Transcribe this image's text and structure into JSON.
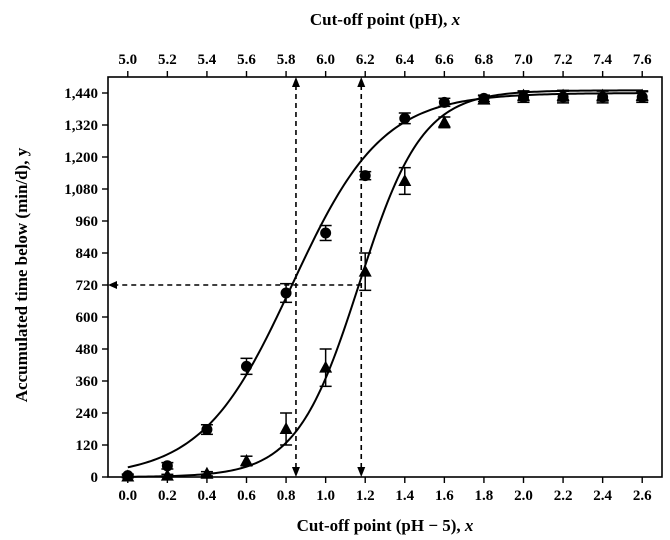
{
  "chart_data": {
    "type": "scatter",
    "title": "",
    "xlabel": "Cut-off point (pH − 5), x",
    "xlabel_text": "Cut-off point (pH − 5), ",
    "xlabel_var": "x",
    "x2label": "Cut-off point (pH), x",
    "x2label_text": "Cut-off point (pH), ",
    "x2label_var": "x",
    "ylabel": "Accumulated time below (min/d), y",
    "xlim": [
      -0.1,
      2.7
    ],
    "ylim": [
      0,
      1500
    ],
    "x_ticks": [
      0.0,
      0.2,
      0.4,
      0.6,
      0.8,
      1.0,
      1.2,
      1.4,
      1.6,
      1.8,
      2.0,
      2.2,
      2.4,
      2.6
    ],
    "x_tick_labels": [
      "0.0",
      "0.2",
      "0.4",
      "0.6",
      "0.8",
      "1.0",
      "1.2",
      "1.4",
      "1.6",
      "1.8",
      "2.0",
      "2.2",
      "2.4",
      "2.6"
    ],
    "x2_tick_labels": [
      "5.0",
      "5.2",
      "5.4",
      "5.6",
      "5.8",
      "6.0",
      "6.2",
      "6.4",
      "6.6",
      "6.8",
      "7.0",
      "7.2",
      "7.4",
      "7.6"
    ],
    "y_ticks": [
      0,
      120,
      240,
      360,
      480,
      600,
      720,
      840,
      960,
      1080,
      1200,
      1320,
      1440
    ],
    "y_tick_labels": [
      "0",
      "120",
      "240",
      "360",
      "480",
      "600",
      "720",
      "840",
      "960",
      "1,080",
      "1,200",
      "1,320",
      "1,440"
    ],
    "grid": false,
    "series": [
      {
        "marker": "circle",
        "x": [
          0.0,
          0.2,
          0.4,
          0.6,
          0.8,
          1.0,
          1.2,
          1.4,
          1.6,
          1.8,
          2.0,
          2.2,
          2.4,
          2.6
        ],
        "y": [
          5,
          42,
          178,
          415,
          690,
          915,
          1130,
          1345,
          1405,
          1420,
          1425,
          1425,
          1425,
          1425
        ],
        "err": [
          6,
          12,
          18,
          30,
          35,
          28,
          15,
          20,
          15,
          12,
          20,
          22,
          22,
          20
        ],
        "fit": {
          "top": 1440,
          "bottom": 0,
          "x50": 0.83,
          "slope": 4.4,
          "x_range": [
            0.0,
            2.6
          ]
        }
      },
      {
        "marker": "triangle",
        "x": [
          0.0,
          0.2,
          0.4,
          0.6,
          0.8,
          1.0,
          1.2,
          1.4,
          1.6,
          1.8,
          2.0,
          2.2,
          2.4,
          2.6
        ],
        "y": [
          2,
          5,
          12,
          60,
          180,
          410,
          770,
          1110,
          1330,
          1415,
          1430,
          1430,
          1430,
          1430
        ],
        "err": [
          5,
          5,
          8,
          18,
          60,
          70,
          70,
          50,
          20,
          15,
          18,
          20,
          20,
          18
        ],
        "fit": {
          "top": 1450,
          "bottom": 0,
          "x50": 1.17,
          "slope": 6.3,
          "x_range": [
            0.0,
            2.6
          ]
        }
      }
    ],
    "reference_lines": {
      "y": 720,
      "x": [
        0.85,
        1.18
      ]
    }
  }
}
